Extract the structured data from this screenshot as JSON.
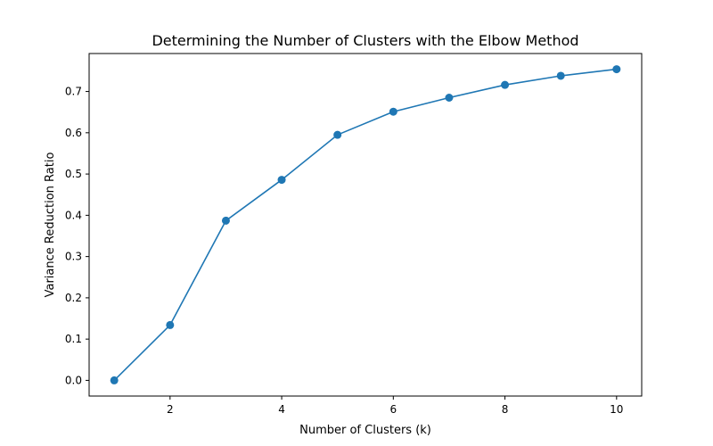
{
  "chart_data": {
    "type": "line",
    "title": "Determining the Number of Clusters with the Elbow Method",
    "xlabel": "Number of Clusters (k)",
    "ylabel": "Variance Reduction Ratio",
    "x": [
      1,
      2,
      3,
      4,
      5,
      6,
      7,
      8,
      9,
      10
    ],
    "series": [
      {
        "values": [
          0.0,
          0.134,
          0.387,
          0.486,
          0.595,
          0.651,
          0.685,
          0.716,
          0.738,
          0.754
        ]
      }
    ],
    "xlim": [
      0.55,
      10.45
    ],
    "ylim": [
      -0.038,
      0.792
    ],
    "xticks": [
      2,
      4,
      6,
      8,
      10
    ],
    "yticks": [
      0.0,
      0.1,
      0.2,
      0.3,
      0.4,
      0.5,
      0.6,
      0.7
    ],
    "xtick_labels": [
      "2",
      "4",
      "6",
      "8",
      "10"
    ],
    "ytick_labels": [
      "0.0",
      "0.1",
      "0.2",
      "0.3",
      "0.4",
      "0.5",
      "0.6",
      "0.7"
    ],
    "marker": "circle",
    "grid": false,
    "colors": {
      "line": "#1f77b4"
    }
  }
}
